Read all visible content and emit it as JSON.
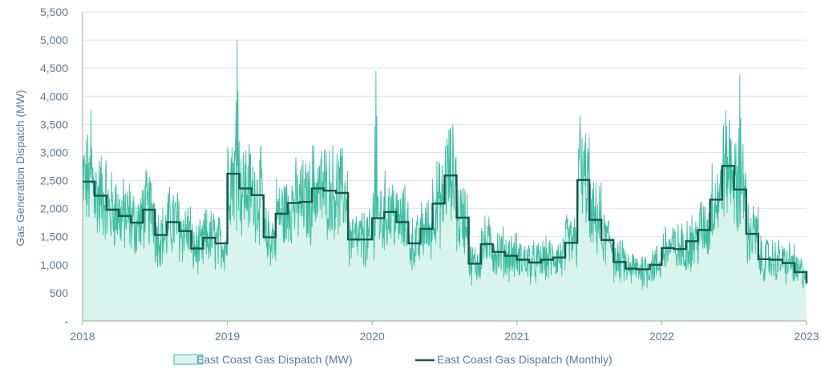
{
  "chart_data": {
    "type": "area",
    "title": "",
    "xlabel": "",
    "ylabel": "Gas Generation Dispatch (MW)",
    "x_ticks": [
      "2018",
      "2019",
      "2020",
      "2021",
      "2022",
      "2023"
    ],
    "xlim": [
      2018,
      2023
    ],
    "y_ticks": [
      "-",
      "500",
      "1,000",
      "1,500",
      "2,000",
      "2,500",
      "3,000",
      "3,500",
      "4,000",
      "4,500",
      "5,000",
      "5,500"
    ],
    "ylim": [
      0,
      5500
    ],
    "grid": "horizontal",
    "legend_position": "bottom",
    "colors": {
      "daily_fill": "#d9f4ec",
      "daily_line": "#3cbf9e",
      "monthly_line": "#17574b"
    },
    "series": [
      {
        "name": "East Coast Gas Dispatch (MW)",
        "kind": "daily-area",
        "description_points_monthly_mean": "Daily values fluctuate around the monthly means below; notable spikes reach ~3,750 (Jan 2018), ~5,000 (Jan 2019), ~4,450 (Jan 2020), ~3,650 (Jun 2021), ~4,400 (Jul 2022)."
      },
      {
        "name": "East Coast Gas Dispatch (Monthly)",
        "kind": "monthly-step",
        "start": "2018-01",
        "values": [
          2480,
          2230,
          1980,
          1870,
          1750,
          1980,
          1530,
          1760,
          1600,
          1290,
          1480,
          1380,
          2620,
          2360,
          2240,
          1490,
          1910,
          2100,
          2120,
          2360,
          2320,
          2280,
          1450,
          1450,
          1830,
          1940,
          1760,
          1380,
          1640,
          2090,
          2590,
          1840,
          1020,
          1370,
          1230,
          1160,
          1090,
          1040,
          1090,
          1130,
          1390,
          2510,
          1800,
          1440,
          1050,
          930,
          920,
          1000,
          1300,
          1280,
          1420,
          1620,
          2160,
          2760,
          2340,
          1550,
          1100,
          1090,
          1030,
          870,
          670
        ]
      }
    ],
    "spikes": [
      {
        "date": "2018-01-22",
        "value": 3750
      },
      {
        "date": "2019-01-25",
        "value": 5000
      },
      {
        "date": "2020-01-10",
        "value": 4450
      },
      {
        "date": "2021-06-08",
        "value": 3650
      },
      {
        "date": "2022-07-15",
        "value": 4400
      }
    ]
  }
}
